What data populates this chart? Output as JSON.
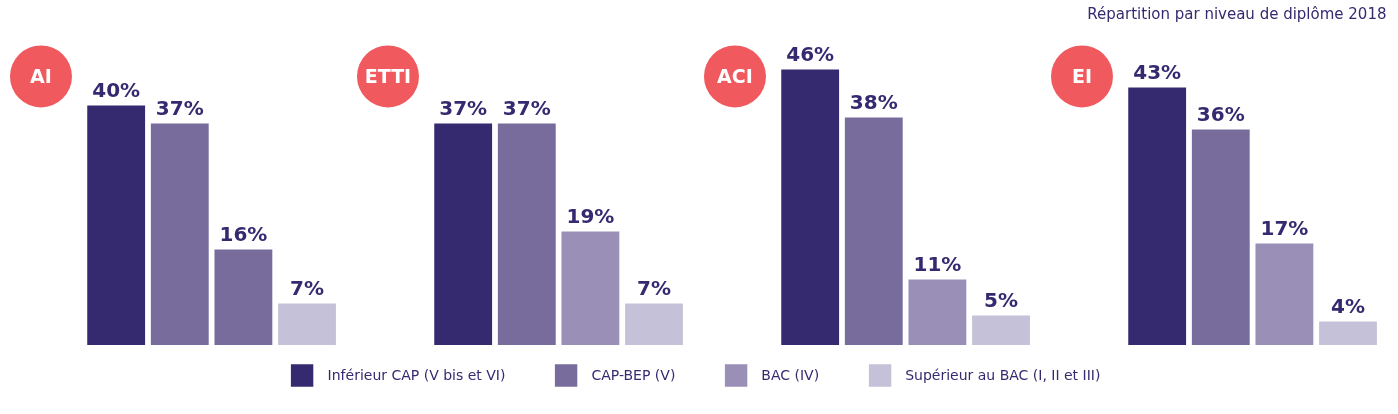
{
  "chart_data": [
    {
      "type": "bar",
      "title": "AI",
      "categories": [
        null
      ],
      "series": [
        {
          "color": "#352a70",
          "values": [
            40
          ],
          "value_labels": [
            "40%"
          ]
        },
        {
          "color": "#786c9c",
          "values": [
            37
          ],
          "value_labels": [
            "37%"
          ]
        },
        {
          "color": "#786c9c",
          "values": [
            16
          ],
          "value_labels": [
            "16%"
          ]
        },
        {
          "color": "#c5c1d8",
          "values": [
            7
          ],
          "value_labels": [
            "7%"
          ]
        }
      ]
    },
    {
      "type": "bar",
      "title": "ETTI",
      "categories": [
        null
      ],
      "legend": "bottom",
      "series": [
        {
          "name": "Inférieur CAP (V bis et VI)",
          "color": "#352a70",
          "values": [
            37
          ],
          "value_labels": [
            "37%"
          ]
        },
        {
          "name": "CAP-BEP (V)",
          "color": "#786c9c",
          "values": [
            37
          ],
          "value_labels": [
            "37%"
          ]
        },
        {
          "name": "BAC (IV)",
          "color": "#9a8fb6",
          "values": [
            19
          ],
          "value_labels": [
            "19%"
          ]
        },
        {
          "name": "Supérieur au BAC (I, II et III)",
          "color": "#c5c1d8",
          "values": [
            7
          ],
          "value_labels": [
            "7%"
          ]
        }
      ]
    },
    {
      "type": "bar",
      "title": "ACI",
      "categories": [
        null
      ],
      "series": [
        {
          "color": "#352a70",
          "values": [
            46
          ],
          "value_labels": [
            "46%"
          ]
        },
        {
          "color": "#786c9c",
          "values": [
            38
          ],
          "value_labels": [
            "38%"
          ]
        },
        {
          "color": "#9a8fb6",
          "values": [
            11
          ],
          "value_labels": [
            "11%"
          ]
        },
        {
          "color": "#c5c1d8",
          "values": [
            5
          ],
          "value_labels": [
            "5%"
          ]
        }
      ]
    },
    {
      "type": "bar",
      "title": "EI",
      "subtitle": "Répartition par niveau de diplôme 2018",
      "categories": [
        null
      ],
      "series": [
        {
          "color": "#352a70",
          "values": [
            43
          ],
          "value_labels": [
            "43%"
          ]
        },
        {
          "color": "#786c9c",
          "values": [
            36
          ],
          "value_labels": [
            "36%"
          ]
        },
        {
          "color": "#9a8fb6",
          "values": [
            17
          ],
          "value_labels": [
            "17%"
          ]
        },
        {
          "color": "#c5c1d8",
          "values": [
            4
          ],
          "value_labels": [
            "4%"
          ]
        }
      ]
    }
  ]
}
